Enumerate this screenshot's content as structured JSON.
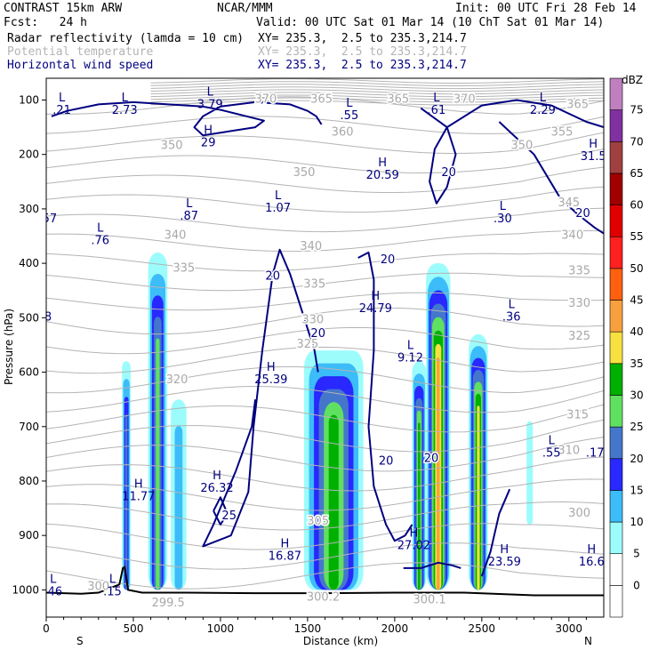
{
  "header": {
    "model": "CONTRAST 15km ARW",
    "org": "NCAR/MMM",
    "init": "Init: 00 UTC Fri 28 Feb 14",
    "fcst": "Fcst:   24 h",
    "valid": "Valid: 00 UTC Sat 01 Mar 14 (10 ChT Sat 01 Mar 14)",
    "fields": [
      {
        "name": "Radar reflectivity (lamda = 10 cm)",
        "xy": "XY= 235.3,  2.5 to 235.3,214.7",
        "color": "#000000"
      },
      {
        "name": "Potential temperature",
        "xy": "XY= 235.3,  2.5 to 235.3,214.7",
        "color": "#b4b4b4"
      },
      {
        "name": "Horizontal wind speed",
        "xy": "XY= 235.3,  2.5 to 235.3,214.7",
        "color": "#000080"
      }
    ]
  },
  "chart_data": {
    "type": "heatmap",
    "xlabel": "Distance (km)",
    "ylabel": "Pressure (hPa)",
    "xlim": [
      0,
      3200
    ],
    "ylim": [
      1050,
      60
    ],
    "xticks": [
      0,
      500,
      1000,
      1500,
      2000,
      2500,
      3000
    ],
    "yticks": [
      100,
      200,
      300,
      400,
      500,
      600,
      700,
      800,
      900,
      1000
    ],
    "x_end_labels": {
      "left": "S",
      "right": "N"
    },
    "colorbar": {
      "unit": "dBZ",
      "levels": [
        -5,
        0,
        5,
        10,
        15,
        20,
        25,
        30,
        35,
        40,
        45,
        50,
        55,
        60,
        65,
        70,
        75,
        80
      ],
      "tick_labels": [
        0,
        5,
        10,
        15,
        20,
        25,
        30,
        35,
        40,
        45,
        50,
        55,
        60,
        65,
        70,
        75
      ],
      "colors": [
        "#ffffff",
        "#ffffff",
        "#9cfcfc",
        "#3cbcf8",
        "#2828ff",
        "#4477cc",
        "#60e060",
        "#00b000",
        "#f8e040",
        "#f8a040",
        "#ff6010",
        "#ff2020",
        "#e00000",
        "#a00000",
        "#a04040",
        "#8030a0",
        "#c080c0"
      ]
    },
    "reflectivity_cells": [
      {
        "x": 460,
        "p_top": 580,
        "p_bot": 1000,
        "halfwidth": 25,
        "peak": 20
      },
      {
        "x": 640,
        "p_top": 380,
        "p_bot": 1000,
        "halfwidth": 55,
        "peak": 25
      },
      {
        "x": 760,
        "p_top": 650,
        "p_bot": 1000,
        "halfwidth": 45,
        "peak": 10
      },
      {
        "x": 1650,
        "p_top": 560,
        "p_bot": 1000,
        "halfwidth": 170,
        "peak": 30
      },
      {
        "x": 2140,
        "p_top": 580,
        "p_bot": 1000,
        "halfwidth": 40,
        "peak": 30
      },
      {
        "x": 2250,
        "p_top": 400,
        "p_bot": 1000,
        "halfwidth": 70,
        "peak": 40
      },
      {
        "x": 2480,
        "p_top": 530,
        "p_bot": 1000,
        "halfwidth": 55,
        "peak": 35
      },
      {
        "x": 2775,
        "p_top": 690,
        "p_bot": 880,
        "halfwidth": 18,
        "peak": 5
      }
    ],
    "theta_labels": [
      {
        "x": 1260,
        "p": 105,
        "text": "370"
      },
      {
        "x": 1580,
        "p": 105,
        "text": "365"
      },
      {
        "x": 2020,
        "p": 105,
        "text": "365"
      },
      {
        "x": 2400,
        "p": 105,
        "text": "370"
      },
      {
        "x": 3050,
        "p": 115,
        "text": "365"
      },
      {
        "x": 1700,
        "p": 165,
        "text": "360"
      },
      {
        "x": 2960,
        "p": 165,
        "text": "355"
      },
      {
        "x": 720,
        "p": 190,
        "text": "350"
      },
      {
        "x": 1480,
        "p": 240,
        "text": "350"
      },
      {
        "x": 2730,
        "p": 190,
        "text": "350"
      },
      {
        "x": 3000,
        "p": 295,
        "text": "345"
      },
      {
        "x": 740,
        "p": 355,
        "text": "340"
      },
      {
        "x": 1520,
        "p": 375,
        "text": "340"
      },
      {
        "x": 3020,
        "p": 355,
        "text": "340"
      },
      {
        "x": 790,
        "p": 415,
        "text": "335"
      },
      {
        "x": 1540,
        "p": 445,
        "text": "335"
      },
      {
        "x": 3060,
        "p": 420,
        "text": "335"
      },
      {
        "x": 3060,
        "p": 480,
        "text": "330"
      },
      {
        "x": 1530,
        "p": 510,
        "text": "330"
      },
      {
        "x": 1500,
        "p": 555,
        "text": "325"
      },
      {
        "x": 3060,
        "p": 540,
        "text": "325"
      },
      {
        "x": 750,
        "p": 620,
        "text": "320"
      },
      {
        "x": 3050,
        "p": 685,
        "text": "315"
      },
      {
        "x": 3000,
        "p": 750,
        "text": "310"
      },
      {
        "x": 3060,
        "p": 865,
        "text": "300"
      },
      {
        "x": 1560,
        "p": 880,
        "text": "305"
      },
      {
        "x": 310,
        "p": 1000,
        "text": "300."
      },
      {
        "x": 700,
        "p": 1030,
        "text": "299.5"
      },
      {
        "x": 1590,
        "p": 1020,
        "text": "300.2"
      },
      {
        "x": 2200,
        "p": 1025,
        "text": "300.1"
      }
    ],
    "wind_extrema": [
      {
        "x": 90,
        "p": 125,
        "type": "L",
        "value": ".21"
      },
      {
        "x": 450,
        "p": 125,
        "type": "L",
        "value": "2.73"
      },
      {
        "x": 940,
        "p": 115,
        "type": "L",
        "value": "3.79"
      },
      {
        "x": 930,
        "p": 185,
        "type": "H",
        "value": "29"
      },
      {
        "x": 1740,
        "p": 135,
        "type": "L",
        "value": ".55"
      },
      {
        "x": 2240,
        "p": 125,
        "type": "L",
        "value": ".61"
      },
      {
        "x": 2850,
        "p": 125,
        "type": "L",
        "value": "2.29"
      },
      {
        "x": 3140,
        "p": 210,
        "type": "H",
        "value": "31.5"
      },
      {
        "x": 1930,
        "p": 245,
        "type": "H",
        "value": "20.59"
      },
      {
        "x": 20,
        "p": 325,
        "type": "",
        "value": "57"
      },
      {
        "x": 310,
        "p": 365,
        "type": "L",
        "value": ".76"
      },
      {
        "x": 820,
        "p": 320,
        "type": "L",
        "value": ".87"
      },
      {
        "x": 1330,
        "p": 305,
        "type": "L",
        "value": "1.07"
      },
      {
        "x": 2620,
        "p": 325,
        "type": "L",
        "value": ".30"
      },
      {
        "x": 2670,
        "p": 505,
        "type": "L",
        "value": ".36"
      },
      {
        "x": 1890,
        "p": 490,
        "type": "H",
        "value": "24.79"
      },
      {
        "x": 2090,
        "p": 580,
        "type": "L",
        "value": "9.12"
      },
      {
        "x": 1290,
        "p": 620,
        "type": "H",
        "value": "25.39"
      },
      {
        "x": 10,
        "p": 505,
        "type": "",
        "value": "8"
      },
      {
        "x": 980,
        "p": 820,
        "type": "H",
        "value": "26.32"
      },
      {
        "x": 530,
        "p": 835,
        "type": "H",
        "value": "11.77"
      },
      {
        "x": 1370,
        "p": 945,
        "type": "H",
        "value": "16.87"
      },
      {
        "x": 2110,
        "p": 925,
        "type": "H",
        "value": "27.02"
      },
      {
        "x": 2630,
        "p": 955,
        "type": "H",
        "value": "23.59"
      },
      {
        "x": 3130,
        "p": 955,
        "type": "H",
        "value": "16.6"
      },
      {
        "x": 2900,
        "p": 755,
        "type": "L",
        "value": ".55"
      },
      {
        "x": 3150,
        "p": 755,
        "type": "",
        "value": ".17"
      },
      {
        "x": 40,
        "p": 1010,
        "type": "L",
        "value": ".46"
      },
      {
        "x": 380,
        "p": 1010,
        "type": "L",
        "value": ".15"
      }
    ],
    "wind_contour_labels": [
      {
        "x": 1300,
        "p": 430,
        "text": "20"
      },
      {
        "x": 1560,
        "p": 535,
        "text": "20"
      },
      {
        "x": 1960,
        "p": 400,
        "text": "20"
      },
      {
        "x": 2310,
        "p": 240,
        "text": "20"
      },
      {
        "x": 3080,
        "p": 315,
        "text": "20"
      },
      {
        "x": 1950,
        "p": 770,
        "text": "20"
      },
      {
        "x": 2210,
        "p": 765,
        "text": "20"
      },
      {
        "x": 1050,
        "p": 870,
        "text": "25"
      }
    ]
  }
}
